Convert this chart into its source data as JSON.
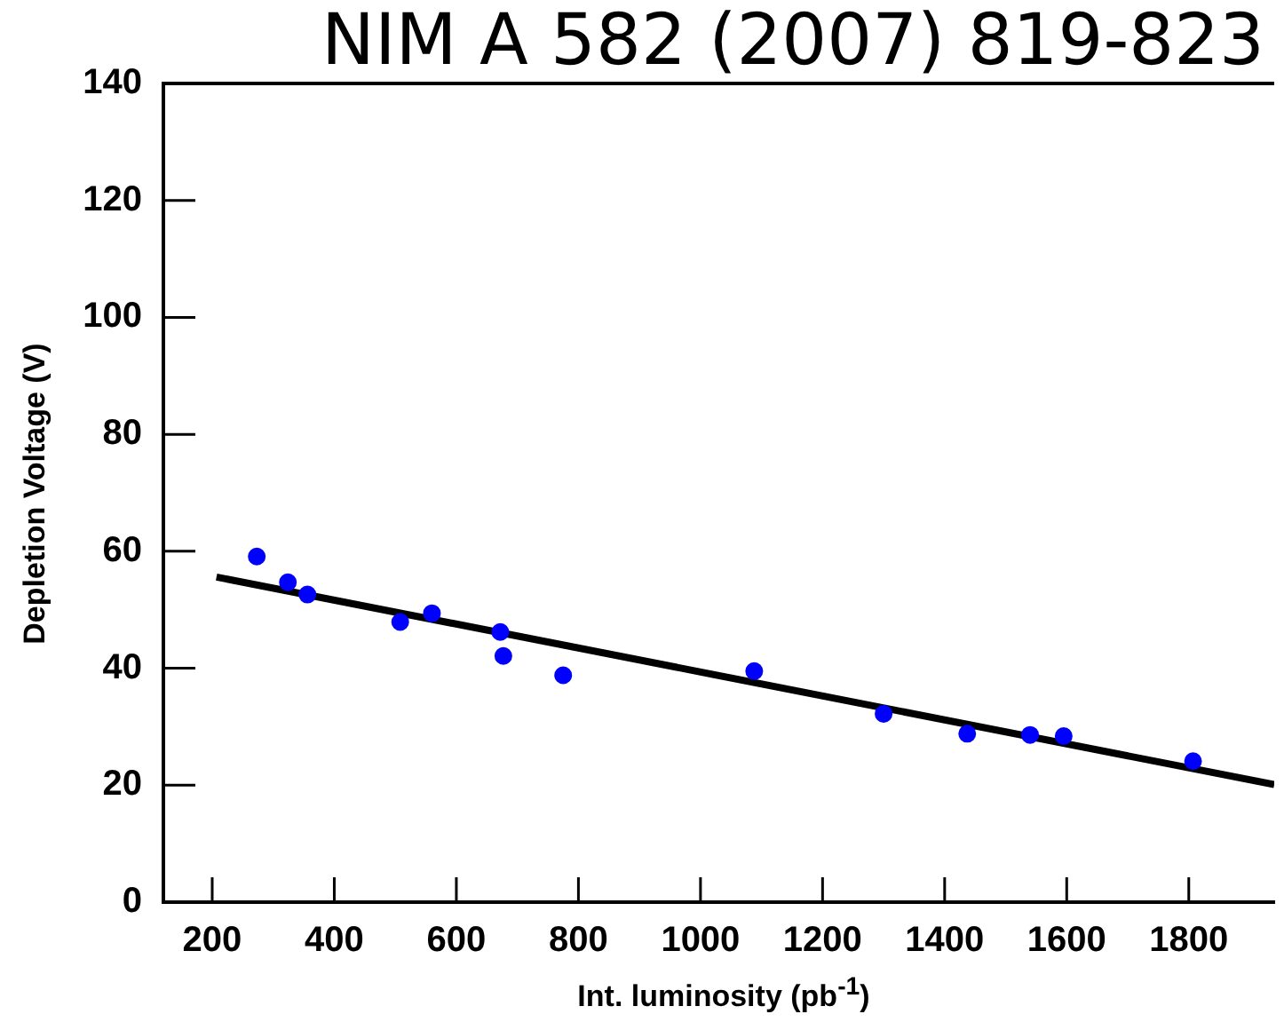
{
  "chart_data": {
    "type": "scatter",
    "title": "NIM A 582 (2007) 819-823",
    "xlabel": "Int. luminosity (pb$^{-1}$)",
    "ylabel": "Depletion Voltage (V)",
    "xlim": [
      120,
      1940
    ],
    "xticks": [
      200,
      400,
      600,
      800,
      1000,
      1200,
      1400,
      1600,
      1800
    ],
    "ylim": [
      0,
      140
    ],
    "yticks": [
      0,
      20,
      40,
      60,
      80,
      100,
      120,
      140
    ],
    "legend": false,
    "series": [
      {
        "color": "#0000ff",
        "marker": "circle",
        "x": [
          273,
          324,
          356,
          508,
          560,
          672,
          677,
          775,
          1088,
          1300,
          1437,
          1540,
          1595,
          1807
        ],
        "values": [
          59.1,
          54.7,
          52.6,
          47.9,
          49.4,
          46.2,
          42.1,
          38.8,
          39.5,
          32.2,
          28.8,
          28.6,
          28.4,
          24.1
        ]
      },
      {
        "type": "line",
        "color": "#000000",
        "marker": "none",
        "x": [
          207,
          1940
        ],
        "values": [
          55.6,
          20.1
        ]
      }
    ]
  }
}
